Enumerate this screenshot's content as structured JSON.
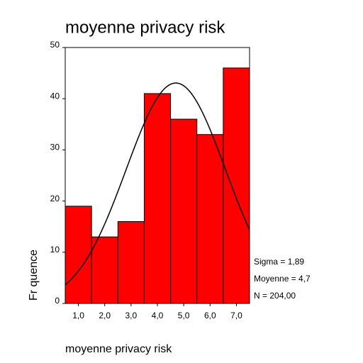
{
  "chart_data": {
    "type": "histogram",
    "title": "moyenne privacy risk",
    "x_label": "moyenne privacy risk",
    "y_label": "Fr quence",
    "bins": [
      0.5,
      1.5,
      2.5,
      3.5,
      4.5,
      5.5,
      6.5,
      7.5
    ],
    "values": [
      19,
      13,
      16,
      41,
      36,
      33,
      46
    ],
    "color": "#ff0000",
    "xlim": [
      0.5,
      7.5
    ],
    "xticks": [
      {
        "value": 1,
        "label": "1,0"
      },
      {
        "value": 2,
        "label": "2,0"
      },
      {
        "value": 3,
        "label": "3,0"
      },
      {
        "value": 4,
        "label": "4,0"
      },
      {
        "value": 5,
        "label": "5,0"
      },
      {
        "value": 6,
        "label": "6,0"
      },
      {
        "value": 7,
        "label": "7,0"
      }
    ],
    "ylim": [
      0,
      50
    ],
    "yticks": [
      0,
      10,
      20,
      30,
      40,
      50
    ],
    "curve": {
      "mean": 4.7,
      "sd": 1.89,
      "n": 204,
      "labels": [
        "Sigma = 1,89",
        "Moyenne = 4,7",
        "N = 204,00"
      ]
    }
  }
}
